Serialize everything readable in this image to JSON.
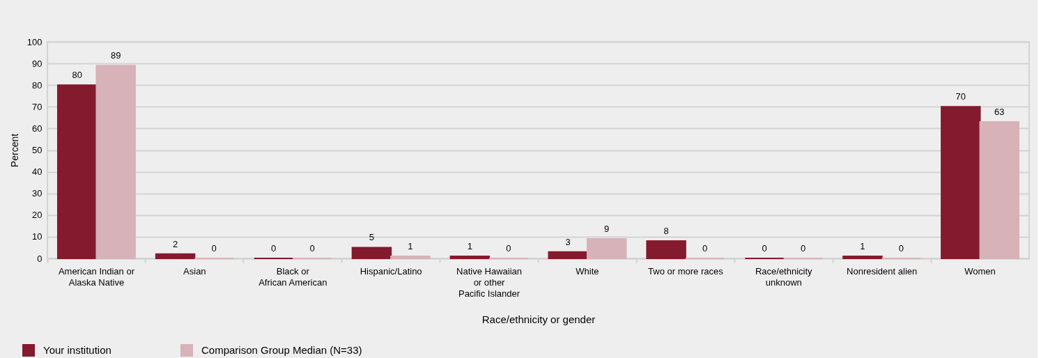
{
  "chart_data": {
    "type": "bar",
    "categories": [
      "American Indian or\nAlaska Native",
      "Asian",
      "Black or\nAfrican American",
      "Hispanic/Latino",
      "Native Hawaiian\nor other\nPacific Islander",
      "White",
      "Two or more races",
      "Race/ethnicity\nunknown",
      "Nonresident alien",
      "Women"
    ],
    "series": [
      {
        "name": "Your institution",
        "color": "#841a2d",
        "values": [
          80,
          2,
          0,
          5,
          1,
          3,
          8,
          0,
          1,
          70
        ]
      },
      {
        "name": "Comparison Group Median (N=33)",
        "color": "#d7b2b8",
        "values": [
          89,
          0,
          0,
          1,
          0,
          9,
          0,
          0,
          0,
          63
        ]
      }
    ],
    "xlabel": "Race/ethnicity or gender",
    "ylabel": "Percent",
    "ylim": [
      0,
      100
    ],
    "yticks": [
      0,
      10,
      20,
      30,
      40,
      50,
      60,
      70,
      80,
      90,
      100
    ],
    "grid": "y",
    "legend": "bottom",
    "data_labels": true
  }
}
